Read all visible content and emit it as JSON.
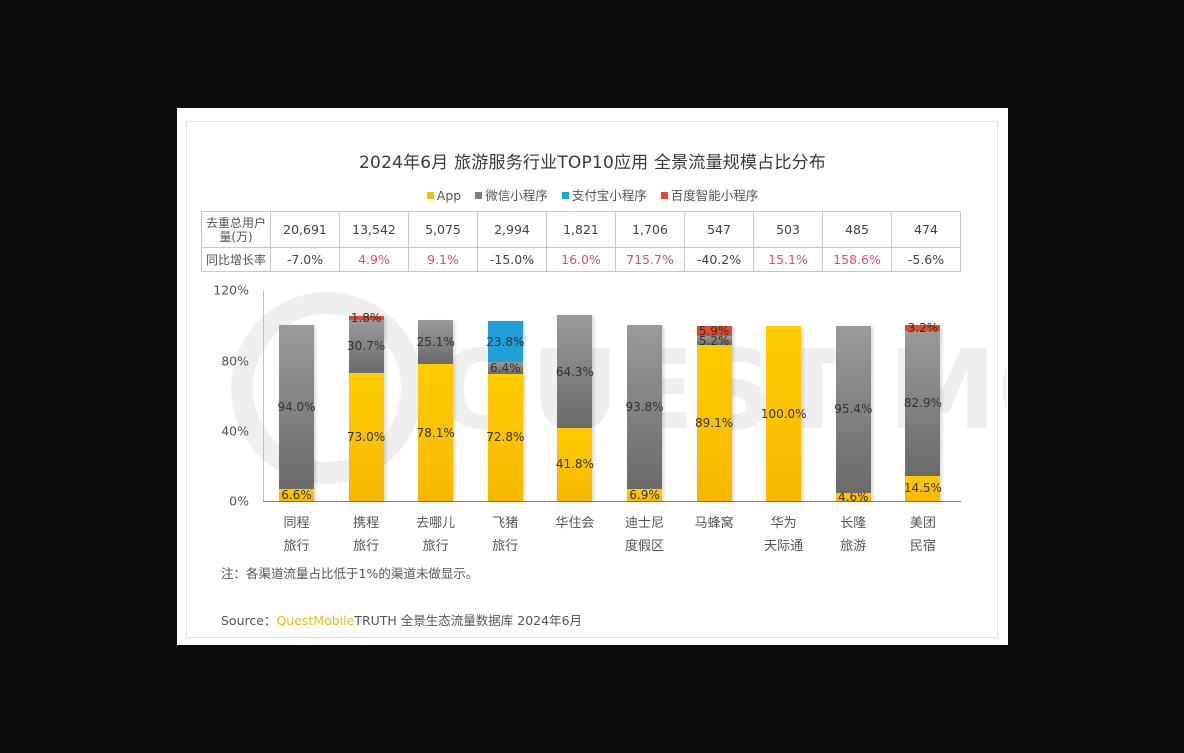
{
  "title": "2024年6月 旅游服务行业TOP10应用 全景流量规模占比分布",
  "legend": [
    {
      "label": "App",
      "color": "#f7c300"
    },
    {
      "label": "微信小程序",
      "color": "#7f7f7f"
    },
    {
      "label": "支付宝小程序",
      "color": "#1f9fd8"
    },
    {
      "label": "百度智能小程序",
      "color": "#e04a2b"
    }
  ],
  "table": {
    "row1_header": "去重总用户量(万)",
    "row2_header": "同比增长率",
    "users": [
      "20,691",
      "13,542",
      "5,075",
      "2,994",
      "1,821",
      "1,706",
      "547",
      "503",
      "485",
      "474"
    ],
    "growth": [
      "-7.0%",
      "4.9%",
      "9.1%",
      "-15.0%",
      "16.0%",
      "715.7%",
      "-40.2%",
      "15.1%",
      "158.6%",
      "-5.6%"
    ]
  },
  "yaxis_ticks": [
    "120%",
    "80%",
    "40%",
    "0%"
  ],
  "categories": [
    [
      "同程",
      "旅行"
    ],
    [
      "携程",
      "旅行"
    ],
    [
      "去哪儿",
      "旅行"
    ],
    [
      "飞猪",
      "旅行"
    ],
    [
      "华住会",
      ""
    ],
    [
      "迪士尼",
      "度假区"
    ],
    [
      "马蜂窝",
      ""
    ],
    [
      "华为",
      "天际通"
    ],
    [
      "长隆",
      "旅游"
    ],
    [
      "美团",
      "民宿"
    ]
  ],
  "note": "注：各渠道流量占比低于1%的渠道未做显示。",
  "source": {
    "prefix": "Source：",
    "brand": "QuestMobile",
    "suffix": "TRUTH 全景生态流量数据库 2024年6月"
  },
  "chart_data": {
    "type": "bar",
    "stacked": true,
    "title": "2024年6月 旅游服务行业TOP10应用 全景流量规模占比分布",
    "categories": [
      "同程旅行",
      "携程旅行",
      "去哪儿旅行",
      "飞猪旅行",
      "华住会",
      "迪士尼度假区",
      "马蜂窝",
      "华为天际通",
      "长隆旅游",
      "美团民宿"
    ],
    "series": [
      {
        "name": "App",
        "color": "#f7c300",
        "values": [
          6.6,
          73.0,
          78.1,
          72.8,
          41.8,
          6.9,
          89.1,
          100.0,
          4.6,
          14.5
        ]
      },
      {
        "name": "微信小程序",
        "color": "#7f7f7f",
        "values": [
          94.0,
          30.7,
          25.1,
          6.4,
          64.3,
          93.8,
          5.2,
          null,
          95.4,
          82.9
        ]
      },
      {
        "name": "支付宝小程序",
        "color": "#1f9fd8",
        "values": [
          null,
          null,
          null,
          23.8,
          null,
          null,
          null,
          null,
          null,
          null
        ]
      },
      {
        "name": "百度智能小程序",
        "color": "#e04a2b",
        "values": [
          null,
          1.8,
          null,
          null,
          null,
          null,
          5.9,
          null,
          null,
          3.2
        ]
      }
    ],
    "table_rows": {
      "去重总用户量(万)": [
        20691,
        13542,
        5075,
        2994,
        1821,
        1706,
        547,
        503,
        485,
        474
      ],
      "同比增长率(%)": [
        -7.0,
        4.9,
        9.1,
        -15.0,
        16.0,
        715.7,
        -40.2,
        15.1,
        158.6,
        -5.6
      ]
    },
    "xlabel": "",
    "ylabel": "",
    "ylim": [
      0,
      120
    ],
    "yticks": [
      0,
      40,
      80,
      120
    ],
    "legend_position": "top",
    "grid": false,
    "note": "注：各渠道流量占比低于1%的渠道未做显示。",
    "source": "Source：QuestMobile TRUTH 全景生态流量数据库 2024年6月"
  }
}
